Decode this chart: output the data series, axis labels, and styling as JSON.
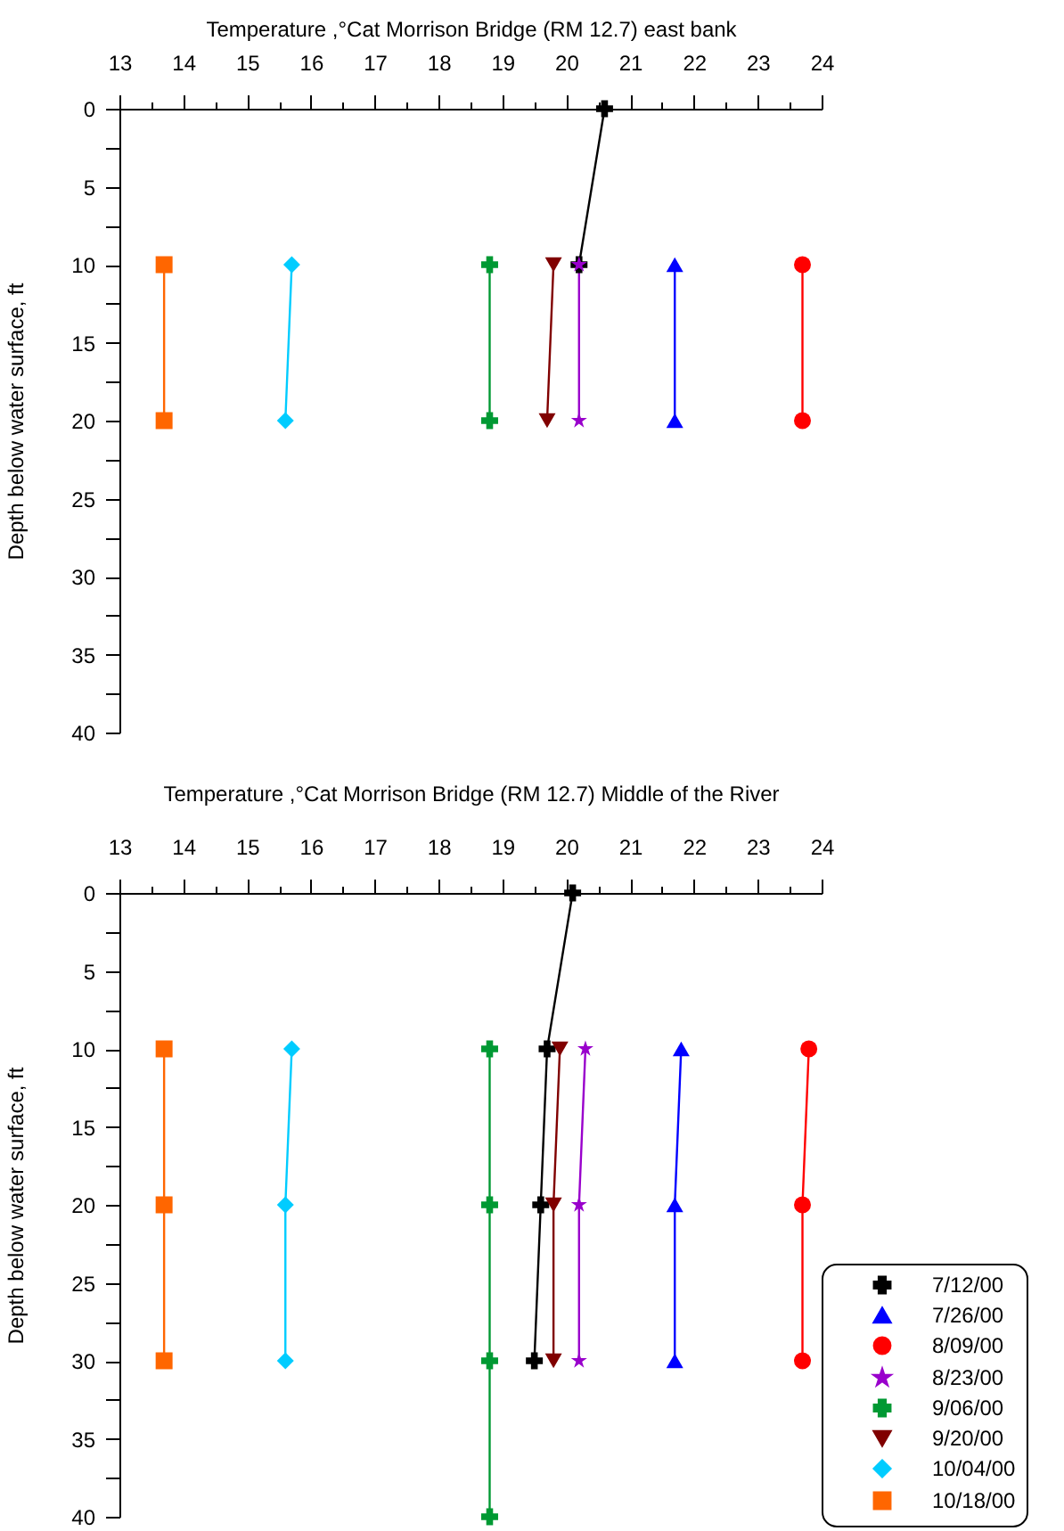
{
  "chart_data": [
    {
      "type": "line",
      "xlabel": "Temperature ,°Cat Morrison Bridge (RM 12.7) east bank",
      "ylabel": "Depth below water surface, ft",
      "xlim": [
        13,
        24
      ],
      "xticks": [
        13,
        {
          "value": 13.5,
          "label": null
        },
        14,
        {
          "value": 14.5,
          "label": null
        },
        15,
        {
          "value": 15.5,
          "label": null
        },
        16,
        {
          "value": 16.5,
          "label": null
        },
        17,
        {
          "value": 17.5,
          "label": null
        },
        18,
        {
          "value": 18.5,
          "label": null
        },
        19,
        {
          "value": 19.5,
          "label": null
        },
        20,
        {
          "value": 20.5,
          "label": null
        },
        21,
        {
          "value": 21.5,
          "label": null
        },
        22,
        {
          "value": 22.5,
          "label": null
        },
        23,
        {
          "value": 23.5,
          "label": null
        },
        24
      ],
      "ylim": [
        40,
        0
      ],
      "yticks": [
        0,
        {
          "value": 2.5,
          "label": null
        },
        5,
        {
          "value": 7.5,
          "label": null
        },
        10,
        {
          "value": 12.5,
          "label": null
        },
        15,
        {
          "value": 17.5,
          "label": null
        },
        20,
        {
          "value": 22.5,
          "label": null
        },
        25,
        {
          "value": 27.5,
          "label": null
        },
        30,
        {
          "value": 32.5,
          "label": null
        },
        35,
        {
          "value": 37.5,
          "label": null
        },
        40
      ],
      "series": [
        {
          "color": "#000000",
          "marker": "cross",
          "x": [
            20.6,
            20.2
          ],
          "values": [
            0,
            10
          ]
        },
        {
          "color": "#0000ff",
          "marker": "triangle",
          "x": [
            21.7,
            21.7
          ],
          "values": [
            10,
            20
          ]
        },
        {
          "color": "#ff0000",
          "marker": "circle",
          "x": [
            23.7,
            23.7
          ],
          "values": [
            10,
            20
          ]
        },
        {
          "color": "#9900cc",
          "marker": "star",
          "x": [
            20.2,
            20.2
          ],
          "values": [
            10,
            20
          ]
        },
        {
          "color": "#009933",
          "marker": "cross",
          "x": [
            18.8,
            18.8
          ],
          "values": [
            10,
            20
          ]
        },
        {
          "color": "#800000",
          "marker": "triangle-down",
          "x": [
            19.8,
            19.7
          ],
          "values": [
            10,
            20
          ]
        },
        {
          "color": "#00ccff",
          "marker": "diamond",
          "x": [
            15.7,
            15.6
          ],
          "values": [
            10,
            20
          ]
        },
        {
          "color": "#ff6600",
          "marker": "square",
          "x": [
            13.7,
            13.7
          ],
          "values": [
            10,
            20
          ]
        }
      ]
    },
    {
      "type": "line",
      "xlabel": "Temperature ,°Cat Morrison Bridge (RM 12.7) Middle of the River",
      "ylabel": "Depth below water surface, ft",
      "xlim": [
        13,
        24
      ],
      "xticks": [
        13,
        {
          "value": 13.5,
          "label": null
        },
        14,
        {
          "value": 14.5,
          "label": null
        },
        15,
        {
          "value": 15.5,
          "label": null
        },
        16,
        {
          "value": 16.5,
          "label": null
        },
        17,
        {
          "value": 17.5,
          "label": null
        },
        18,
        {
          "value": 18.5,
          "label": null
        },
        19,
        {
          "value": 19.5,
          "label": null
        },
        20,
        {
          "value": 20.5,
          "label": null
        },
        21,
        {
          "value": 21.5,
          "label": null
        },
        22,
        {
          "value": 22.5,
          "label": null
        },
        23,
        {
          "value": 23.5,
          "label": null
        },
        24
      ],
      "ylim": [
        40,
        0
      ],
      "yticks": [
        0,
        {
          "value": 2.5,
          "label": null
        },
        5,
        {
          "value": 7.5,
          "label": null
        },
        10,
        {
          "value": 12.5,
          "label": null
        },
        15,
        {
          "value": 17.5,
          "label": null
        },
        20,
        {
          "value": 22.5,
          "label": null
        },
        25,
        {
          "value": 27.5,
          "label": null
        },
        30,
        {
          "value": 32.5,
          "label": null
        },
        35,
        {
          "value": 37.5,
          "label": null
        },
        40
      ],
      "legend": "bottom right",
      "series": [
        {
          "name": "7/12/00",
          "color": "#000000",
          "marker": "cross",
          "x": [
            20.1,
            19.7,
            19.6,
            19.5
          ],
          "values": [
            0,
            10,
            20,
            30
          ]
        },
        {
          "name": "7/26/00",
          "color": "#0000ff",
          "marker": "triangle",
          "x": [
            21.8,
            21.7,
            21.7
          ],
          "values": [
            10,
            20,
            30
          ]
        },
        {
          "name": "8/09/00",
          "color": "#ff0000",
          "marker": "circle",
          "x": [
            23.8,
            23.7,
            23.7
          ],
          "values": [
            10,
            20,
            30
          ]
        },
        {
          "name": "8/23/00",
          "color": "#9900cc",
          "marker": "star",
          "x": [
            20.3,
            20.2,
            20.2
          ],
          "values": [
            10,
            20,
            30
          ]
        },
        {
          "name": "9/06/00",
          "color": "#009933",
          "marker": "cross",
          "x": [
            18.8,
            18.8,
            18.8,
            18.8
          ],
          "values": [
            10,
            20,
            30,
            40
          ]
        },
        {
          "name": "9/20/00",
          "color": "#800000",
          "marker": "triangle-down",
          "x": [
            19.9,
            19.8,
            19.8
          ],
          "values": [
            10,
            20,
            30
          ]
        },
        {
          "name": "10/04/00",
          "color": "#00ccff",
          "marker": "diamond",
          "x": [
            15.7,
            15.6,
            15.6
          ],
          "values": [
            10,
            20,
            30
          ]
        },
        {
          "name": "10/18/00",
          "color": "#ff6600",
          "marker": "square",
          "x": [
            13.7,
            13.7,
            13.7
          ],
          "values": [
            10,
            20,
            30
          ]
        }
      ]
    }
  ]
}
